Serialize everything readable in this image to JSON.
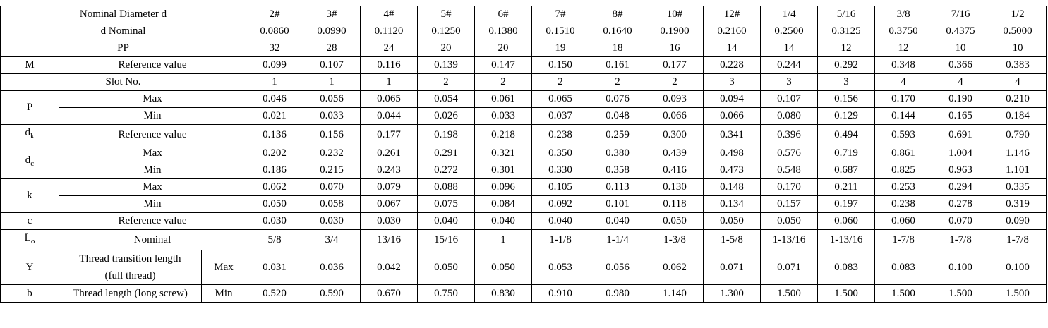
{
  "rows": [
    {
      "lines": [
        {
          "label": "Nominal Diameter  d",
          "values": [
            "2#",
            "3#",
            "4#",
            "5#",
            "6#",
            "7#",
            "8#",
            "10#",
            "12#",
            "1/4",
            "5/16",
            "3/8",
            "7/16",
            "1/2"
          ]
        }
      ]
    },
    {
      "lines": [
        {
          "label": "d Nominal",
          "values": [
            "0.0860",
            "0.0990",
            "0.1120",
            "0.1250",
            "0.1380",
            "0.1510",
            "0.1640",
            "0.1900",
            "0.2160",
            "0.2500",
            "0.3125",
            "0.3750",
            "0.4375",
            "0.5000"
          ]
        }
      ]
    },
    {
      "lines": [
        {
          "label": "PP",
          "values": [
            "32",
            "28",
            "24",
            "20",
            "20",
            "19",
            "18",
            "16",
            "14",
            "14",
            "12",
            "12",
            "10",
            "10"
          ]
        }
      ]
    },
    {
      "symbol": "M",
      "lines": [
        {
          "label": "Reference value",
          "values": [
            "0.099",
            "0.107",
            "0.116",
            "0.139",
            "0.147",
            "0.150",
            "0.161",
            "0.177",
            "0.228",
            "0.244",
            "0.292",
            "0.348",
            "0.366",
            "0.383"
          ]
        }
      ]
    },
    {
      "lines": [
        {
          "label": "Slot No.",
          "values": [
            "1",
            "1",
            "1",
            "2",
            "2",
            "2",
            "2",
            "2",
            "3",
            "3",
            "3",
            "4",
            "4",
            "4"
          ]
        }
      ]
    },
    {
      "symbol": "P",
      "lines": [
        {
          "label": "Max",
          "values": [
            "0.046",
            "0.056",
            "0.065",
            "0.054",
            "0.061",
            "0.065",
            "0.076",
            "0.093",
            "0.094",
            "0.107",
            "0.156",
            "0.170",
            "0.190",
            "0.210"
          ]
        },
        {
          "label": "Min",
          "values": [
            "0.021",
            "0.033",
            "0.044",
            "0.026",
            "0.033",
            "0.037",
            "0.048",
            "0.066",
            "0.066",
            "0.080",
            "0.129",
            "0.144",
            "0.165",
            "0.184"
          ]
        }
      ]
    },
    {
      "symbol": "d",
      "sub": "k",
      "lines": [
        {
          "label": "Reference value",
          "values": [
            "0.136",
            "0.156",
            "0.177",
            "0.198",
            "0.218",
            "0.238",
            "0.259",
            "0.300",
            "0.341",
            "0.396",
            "0.494",
            "0.593",
            "0.691",
            "0.790"
          ]
        }
      ]
    },
    {
      "symbol": "d",
      "sub": "c",
      "lines": [
        {
          "label": "Max",
          "values": [
            "0.202",
            "0.232",
            "0.261",
            "0.291",
            "0.321",
            "0.350",
            "0.380",
            "0.439",
            "0.498",
            "0.576",
            "0.719",
            "0.861",
            "1.004",
            "1.146"
          ]
        },
        {
          "label": "Min",
          "values": [
            "0.186",
            "0.215",
            "0.243",
            "0.272",
            "0.301",
            "0.330",
            "0.358",
            "0.416",
            "0.473",
            "0.548",
            "0.687",
            "0.825",
            "0.963",
            "1.101"
          ]
        }
      ]
    },
    {
      "symbol": "k",
      "lines": [
        {
          "label": "Max",
          "values": [
            "0.062",
            "0.070",
            "0.079",
            "0.088",
            "0.096",
            "0.105",
            "0.113",
            "0.130",
            "0.148",
            "0.170",
            "0.211",
            "0.253",
            "0.294",
            "0.335"
          ]
        },
        {
          "label": "Min",
          "values": [
            "0.050",
            "0.058",
            "0.067",
            "0.075",
            "0.084",
            "0.092",
            "0.101",
            "0.118",
            "0.134",
            "0.157",
            "0.197",
            "0.238",
            "0.278",
            "0.319"
          ]
        }
      ]
    },
    {
      "symbol": "c",
      "lines": [
        {
          "label": "Reference value",
          "values": [
            "0.030",
            "0.030",
            "0.030",
            "0.040",
            "0.040",
            "0.040",
            "0.040",
            "0.050",
            "0.050",
            "0.050",
            "0.060",
            "0.060",
            "0.070",
            "0.090"
          ]
        }
      ]
    },
    {
      "symbol": "L",
      "sub": "o",
      "lines": [
        {
          "label": "Nominal",
          "values": [
            "5/8",
            "3/4",
            "13/16",
            "15/16",
            "1",
            "1-1/8",
            "1-1/4",
            "1-3/8",
            "1-5/8",
            "1-13/16",
            "1-13/16",
            "1-7/8",
            "1-7/8",
            "1-7/8"
          ]
        }
      ]
    },
    {
      "symbol": "Y",
      "lines": [
        {
          "label": "Thread transition length (full thread)",
          "sublabel": "Max",
          "values": [
            "0.031",
            "0.036",
            "0.042",
            "0.050",
            "0.050",
            "0.053",
            "0.056",
            "0.062",
            "0.071",
            "0.071",
            "0.083",
            "0.083",
            "0.100",
            "0.100"
          ]
        }
      ]
    },
    {
      "symbol": "b",
      "lines": [
        {
          "label": "Thread length (long screw)",
          "sublabel": "Min",
          "values": [
            "0.520",
            "0.590",
            "0.670",
            "0.750",
            "0.830",
            "0.910",
            "0.980",
            "1.140",
            "1.300",
            "1.500",
            "1.500",
            "1.500",
            "1.500",
            "1.500"
          ]
        }
      ]
    }
  ]
}
